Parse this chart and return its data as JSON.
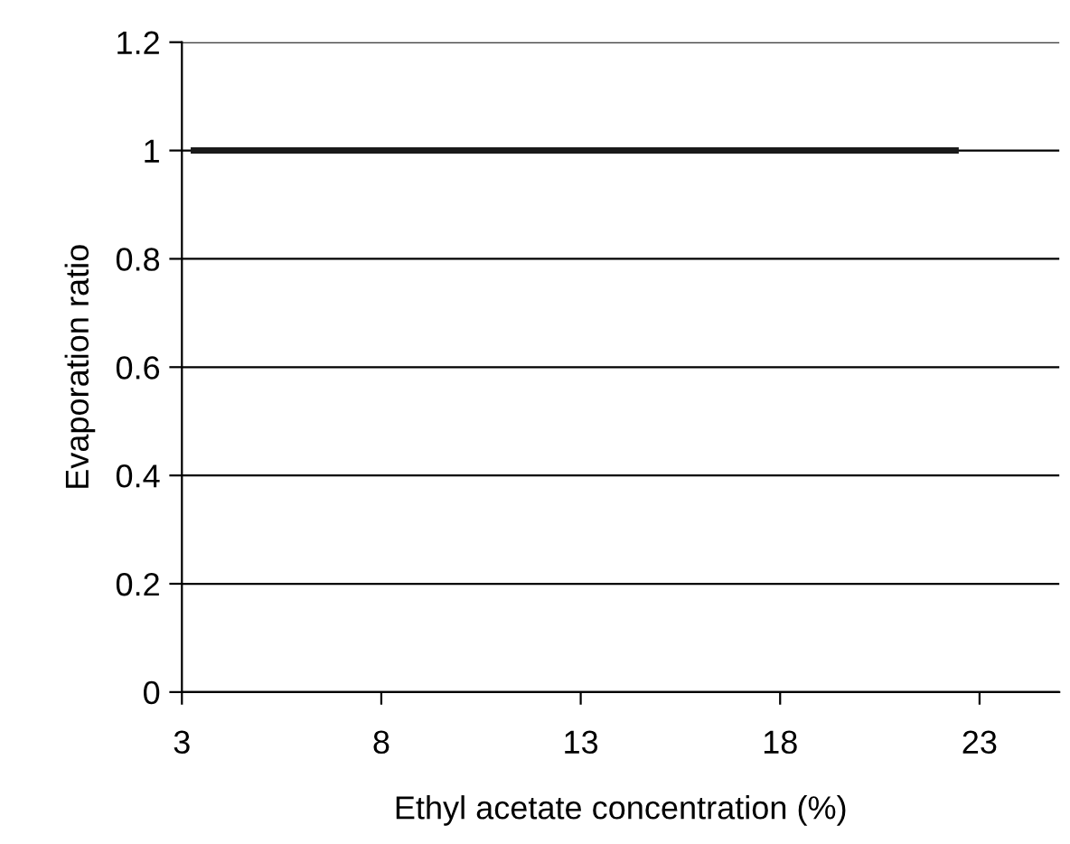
{
  "chart_data": {
    "type": "line",
    "xlabel": "Ethyl acetate concentration (%)",
    "ylabel": "Evaporation ratio",
    "x": [
      3.3,
      22.4
    ],
    "series": [
      {
        "color": "#1a1a1a",
        "values": [
          1,
          1
        ]
      }
    ],
    "xlim": [
      3,
      25
    ],
    "xticks": [
      3,
      8,
      13,
      18,
      23
    ],
    "ylim": [
      0,
      1.2
    ],
    "yticks": [
      0,
      0.2,
      0.4,
      0.6,
      0.8,
      1,
      1.2
    ],
    "grid": "y",
    "marker": "none",
    "line_style": "solid"
  }
}
